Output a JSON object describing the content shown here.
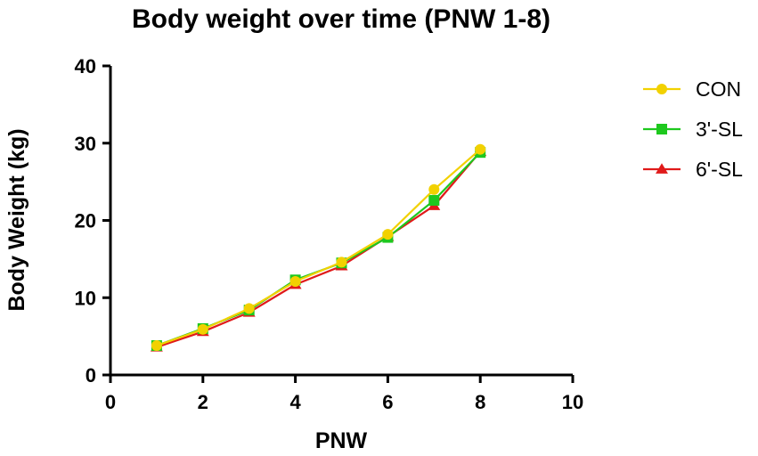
{
  "chart_data": {
    "type": "line",
    "title": "Body weight over time (PNW 1-8)",
    "xlabel": "PNW",
    "ylabel": "Body Weight (kg)",
    "xlim": [
      0,
      10
    ],
    "ylim": [
      0,
      40
    ],
    "xticks": [
      0,
      2,
      4,
      6,
      8,
      10
    ],
    "yticks": [
      0,
      10,
      20,
      30,
      40
    ],
    "grid": false,
    "legend_position": "top-right",
    "x": [
      1,
      2,
      3,
      4,
      5,
      6,
      7,
      8
    ],
    "series": [
      {
        "name": "CON",
        "color": "#f2d100",
        "marker": "circle",
        "values": [
          3.8,
          5.9,
          8.6,
          12.1,
          14.6,
          18.2,
          24.0,
          29.2
        ]
      },
      {
        "name": "3'-SL",
        "color": "#1ec81e",
        "marker": "square",
        "values": [
          3.8,
          6.0,
          8.4,
          12.3,
          14.5,
          17.8,
          22.6,
          28.8
        ]
      },
      {
        "name": "6'-SL",
        "color": "#e01a1a",
        "marker": "triangle",
        "values": [
          3.6,
          5.6,
          8.1,
          11.7,
          14.1,
          17.9,
          21.9,
          28.9
        ]
      }
    ]
  }
}
